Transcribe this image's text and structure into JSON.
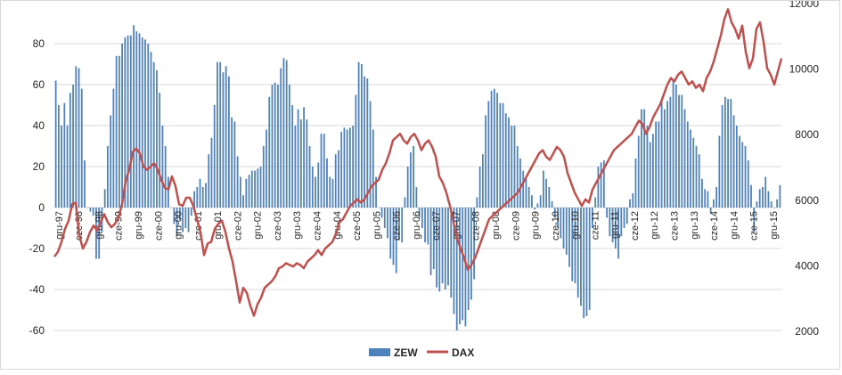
{
  "chart_data": {
    "type": "bar+line",
    "title": "",
    "x_labels": [
      "gru-97",
      "cze-98",
      "gru-98",
      "cze-99",
      "gru-99",
      "cze-00",
      "gru-00",
      "cze-01",
      "gru-01",
      "cze-02",
      "gru-02",
      "cze-03",
      "gru-03",
      "cze-04",
      "gru-04",
      "cze-05",
      "gru-05",
      "cze-06",
      "gru-06",
      "cze-07",
      "gru-07",
      "cze-08",
      "gru-08",
      "cze-09",
      "gru-09",
      "cze-10",
      "gru-10",
      "cze-11",
      "gru-11",
      "cze-12",
      "gru-12",
      "cze-13",
      "gru-13",
      "cze-14",
      "gru-14",
      "cze-15",
      "gru-15"
    ],
    "y_left": {
      "min": -60,
      "max": 100,
      "ticks": [
        80,
        60,
        40,
        20,
        0,
        -20,
        -40,
        -60
      ]
    },
    "y_right": {
      "min": 2000,
      "max": 12000,
      "ticks": [
        12000,
        10000,
        8000,
        6000,
        4000,
        2000
      ]
    },
    "series": [
      {
        "name": "ZEW",
        "type": "bar",
        "axis": "left",
        "color": "#4f81bd",
        "values": [
          62,
          50,
          40,
          51,
          40,
          56,
          60,
          69,
          68,
          58,
          23,
          0,
          -2,
          -4,
          -25,
          -25,
          -12,
          9,
          30,
          45,
          58,
          74,
          74,
          80,
          83,
          84,
          84,
          89,
          86,
          85,
          83,
          82,
          80,
          76,
          71,
          67,
          56,
          40,
          30,
          15,
          0,
          -8,
          -14,
          -6,
          -12,
          -10,
          -12,
          -4,
          8,
          10,
          14,
          10,
          12,
          26,
          34,
          50,
          71,
          71,
          66,
          69,
          64,
          44,
          42,
          25,
          15,
          6,
          14,
          16,
          18,
          18,
          19,
          20,
          30,
          38,
          54,
          60,
          61,
          60,
          68,
          73,
          72,
          60,
          50,
          40,
          48,
          43,
          49,
          43,
          30,
          20,
          15,
          22,
          36,
          36,
          24,
          15,
          14,
          26,
          28,
          37,
          39,
          38,
          39,
          40,
          55,
          71,
          70,
          64,
          63,
          52,
          38,
          15,
          0,
          -5,
          -10,
          -15,
          -25,
          -28,
          -32,
          -16,
          -17,
          5,
          20,
          27,
          30,
          10,
          -5,
          -10,
          -17,
          -18,
          -33,
          -30,
          -39,
          -41,
          -37,
          -40,
          -38,
          -44,
          -52,
          -60,
          -57,
          -55,
          -58,
          -50,
          -45,
          -35,
          5,
          20,
          26,
          45,
          52,
          57,
          58,
          56,
          51,
          51,
          46,
          44,
          40,
          40,
          30,
          24,
          18,
          14,
          10,
          6,
          -1,
          2,
          6,
          18,
          14,
          10,
          3,
          -5,
          -10,
          -15,
          -20,
          -23,
          -29,
          -36,
          -37,
          -44,
          -48,
          -54,
          -53,
          -50,
          -10,
          5,
          20,
          22,
          23,
          -5,
          -14,
          -17,
          -20,
          -25,
          -14,
          -10,
          -8,
          4,
          7,
          24,
          35,
          48,
          48,
          40,
          32,
          36,
          42,
          42,
          52,
          48,
          52,
          54,
          62,
          60,
          55,
          55,
          48,
          42,
          38,
          34,
          30,
          26,
          14,
          9,
          8,
          -3,
          4,
          10,
          35,
          50,
          54,
          53,
          53,
          45,
          40,
          35,
          32,
          30,
          23,
          11,
          -12,
          3,
          9,
          10,
          15,
          8,
          3,
          0,
          4,
          11
        ]
      },
      {
        "name": "DAX",
        "type": "line",
        "axis": "right",
        "color": "#c0504d",
        "values": [
          4250,
          4400,
          4700,
          5100,
          5350,
          5850,
          5900,
          4900,
          4500,
          4700,
          5000,
          5200,
          5050,
          5300,
          5550,
          5300,
          5150,
          5250,
          5450,
          5850,
          6550,
          6900,
          7450,
          7550,
          7400,
          7000,
          6900,
          7000,
          7100,
          6900,
          6600,
          6350,
          6300,
          6700,
          6400,
          5850,
          5800,
          6050,
          6050,
          5800,
          5400,
          5000,
          4300,
          4650,
          4700,
          5100,
          5250,
          5350,
          5000,
          4500,
          4100,
          3500,
          2850,
          3300,
          3150,
          2750,
          2450,
          2800,
          3000,
          3300,
          3400,
          3500,
          3650,
          3900,
          3950,
          4050,
          4000,
          3950,
          4050,
          4000,
          3900,
          4100,
          4200,
          4300,
          4450,
          4300,
          4500,
          4600,
          4700,
          4950,
          5300,
          5400,
          5600,
          5800,
          5900,
          6000,
          5900,
          6000,
          6200,
          6400,
          6500,
          6600,
          6900,
          7100,
          7400,
          7800,
          7900,
          8000,
          7800,
          7700,
          7900,
          8000,
          7800,
          7500,
          7700,
          7800,
          7600,
          7300,
          6700,
          6500,
          6200,
          5800,
          5300,
          4800,
          4500,
          4200,
          3850,
          4000,
          4200,
          4500,
          4800,
          5100,
          5400,
          5500,
          5600,
          5700,
          5800,
          5900,
          6000,
          6100,
          6200,
          6400,
          6600,
          6800,
          7000,
          7200,
          7400,
          7500,
          7300,
          7200,
          7400,
          7600,
          7500,
          7300,
          6800,
          6500,
          6200,
          6000,
          5800,
          6000,
          5900,
          6300,
          6500,
          6700,
          6900,
          7100,
          7300,
          7500,
          7600,
          7700,
          7800,
          7900,
          8000,
          8200,
          8400,
          8300,
          8000,
          8200,
          8500,
          8700,
          8900,
          9200,
          9500,
          9700,
          9600,
          9800,
          9900,
          9700,
          9500,
          9600,
          9400,
          9500,
          9300,
          9700,
          9900,
          10200,
          10600,
          11000,
          11500,
          11800,
          11400,
          11200,
          10900,
          11300,
          10500,
          10000,
          10300,
          11200,
          11400,
          10800,
          10000,
          9800,
          9500,
          9900,
          10300
        ]
      }
    ],
    "legend": {
      "position": "bottom",
      "entries": [
        "ZEW",
        "DAX"
      ]
    }
  }
}
